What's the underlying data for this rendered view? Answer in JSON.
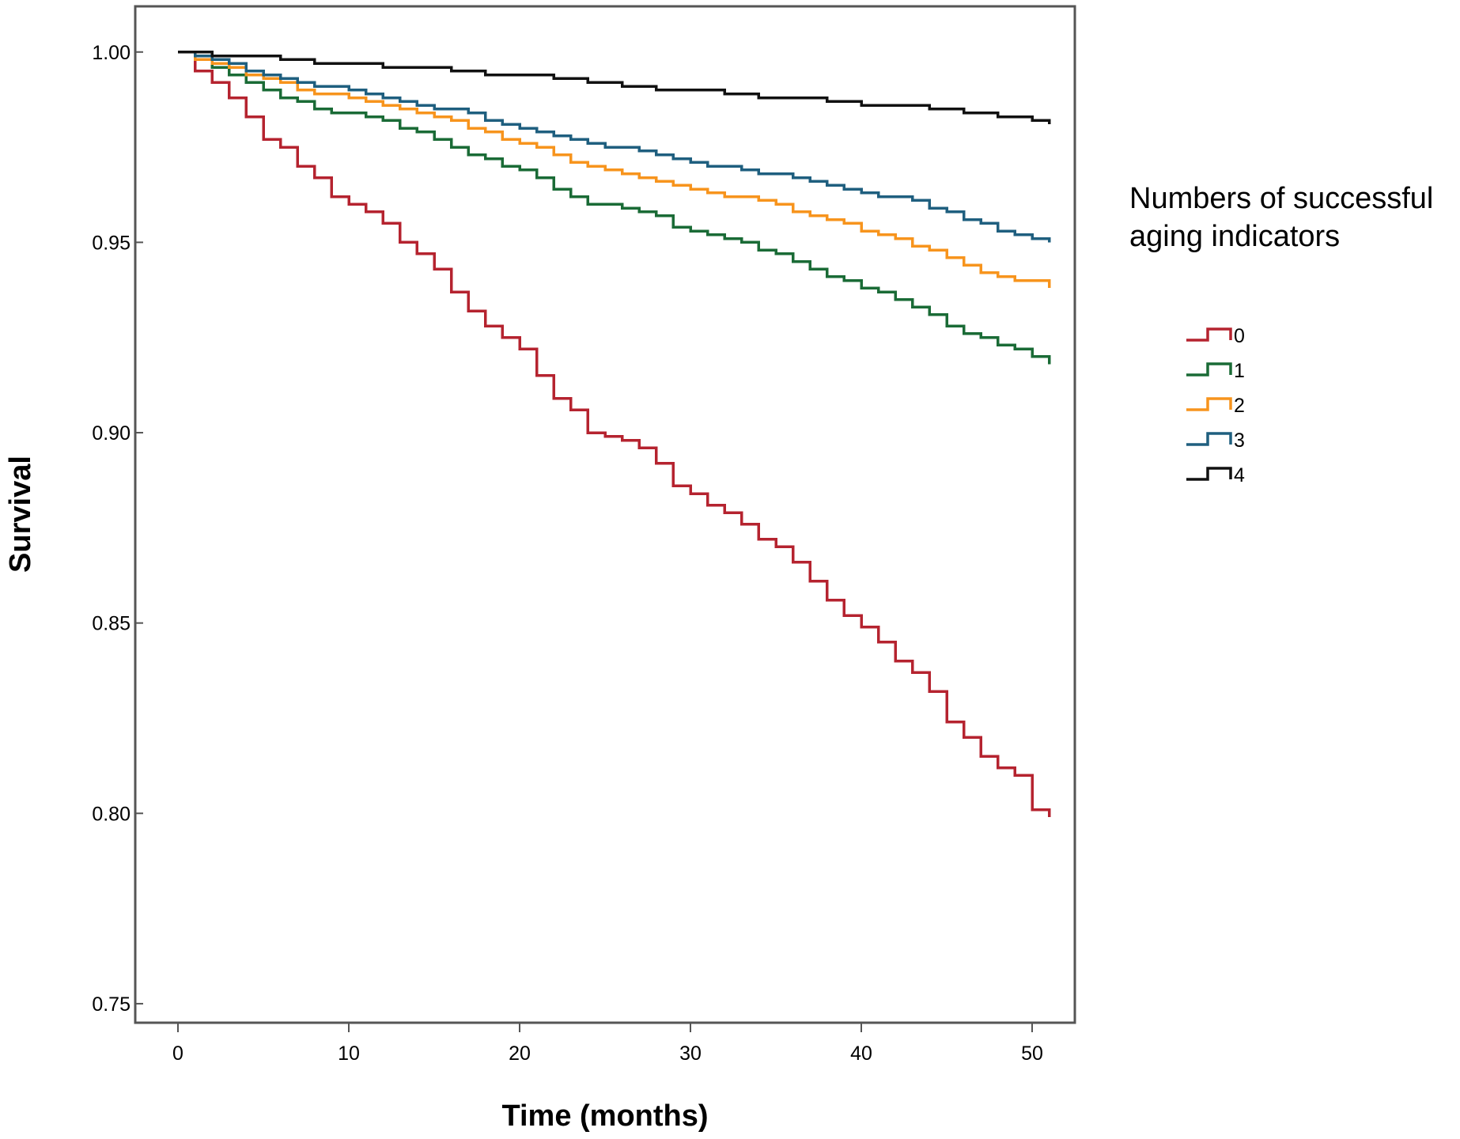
{
  "chart_data": {
    "type": "line",
    "step": true,
    "xlabel": "Time (months)",
    "ylabel": "Survival",
    "xlim": [
      -2.5,
      52.5
    ],
    "ylim": [
      0.745,
      1.012
    ],
    "xticks": [
      0,
      10,
      20,
      30,
      40,
      50
    ],
    "yticks": [
      0.75,
      0.8,
      0.85,
      0.9,
      0.95,
      1.0
    ],
    "xtick_labels": [
      "0",
      "10",
      "20",
      "30",
      "40",
      "50"
    ],
    "ytick_labels": [
      "0.75",
      "0.80",
      "0.85",
      "0.90",
      "0.95",
      "1.00"
    ],
    "grid": false,
    "legend": {
      "title_lines": [
        "Numbers of successful",
        "aging indicators"
      ],
      "placement": "right-outside"
    },
    "series": [
      {
        "name": "0",
        "color": "#b5232f",
        "points": [
          [
            0,
            1.0
          ],
          [
            1,
            0.995
          ],
          [
            2,
            0.992
          ],
          [
            3,
            0.988
          ],
          [
            4,
            0.983
          ],
          [
            5,
            0.977
          ],
          [
            6,
            0.975
          ],
          [
            7,
            0.97
          ],
          [
            8,
            0.967
          ],
          [
            9,
            0.962
          ],
          [
            10,
            0.96
          ],
          [
            11,
            0.958
          ],
          [
            12,
            0.955
          ],
          [
            13,
            0.95
          ],
          [
            14,
            0.947
          ],
          [
            15,
            0.943
          ],
          [
            16,
            0.937
          ],
          [
            17,
            0.932
          ],
          [
            18,
            0.928
          ],
          [
            19,
            0.925
          ],
          [
            20,
            0.922
          ],
          [
            21,
            0.915
          ],
          [
            22,
            0.909
          ],
          [
            23,
            0.906
          ],
          [
            24,
            0.9
          ],
          [
            25,
            0.899
          ],
          [
            26,
            0.898
          ],
          [
            27,
            0.896
          ],
          [
            28,
            0.892
          ],
          [
            29,
            0.886
          ],
          [
            30,
            0.884
          ],
          [
            31,
            0.881
          ],
          [
            32,
            0.879
          ],
          [
            33,
            0.876
          ],
          [
            34,
            0.872
          ],
          [
            35,
            0.87
          ],
          [
            36,
            0.866
          ],
          [
            37,
            0.861
          ],
          [
            38,
            0.856
          ],
          [
            39,
            0.852
          ],
          [
            40,
            0.849
          ],
          [
            41,
            0.845
          ],
          [
            42,
            0.84
          ],
          [
            43,
            0.837
          ],
          [
            44,
            0.832
          ],
          [
            45,
            0.824
          ],
          [
            46,
            0.82
          ],
          [
            47,
            0.815
          ],
          [
            48,
            0.812
          ],
          [
            49,
            0.81
          ],
          [
            50,
            0.801
          ],
          [
            51,
            0.799
          ]
        ]
      },
      {
        "name": "1",
        "color": "#1a6b36",
        "points": [
          [
            0,
            1.0
          ],
          [
            1,
            0.998
          ],
          [
            2,
            0.996
          ],
          [
            3,
            0.994
          ],
          [
            4,
            0.992
          ],
          [
            5,
            0.99
          ],
          [
            6,
            0.988
          ],
          [
            7,
            0.987
          ],
          [
            8,
            0.985
          ],
          [
            9,
            0.984
          ],
          [
            10,
            0.984
          ],
          [
            11,
            0.983
          ],
          [
            12,
            0.982
          ],
          [
            13,
            0.98
          ],
          [
            14,
            0.979
          ],
          [
            15,
            0.977
          ],
          [
            16,
            0.975
          ],
          [
            17,
            0.973
          ],
          [
            18,
            0.972
          ],
          [
            19,
            0.97
          ],
          [
            20,
            0.969
          ],
          [
            21,
            0.967
          ],
          [
            22,
            0.964
          ],
          [
            23,
            0.962
          ],
          [
            24,
            0.96
          ],
          [
            25,
            0.96
          ],
          [
            26,
            0.959
          ],
          [
            27,
            0.958
          ],
          [
            28,
            0.957
          ],
          [
            29,
            0.954
          ],
          [
            30,
            0.953
          ],
          [
            31,
            0.952
          ],
          [
            32,
            0.951
          ],
          [
            33,
            0.95
          ],
          [
            34,
            0.948
          ],
          [
            35,
            0.947
          ],
          [
            36,
            0.945
          ],
          [
            37,
            0.943
          ],
          [
            38,
            0.941
          ],
          [
            39,
            0.94
          ],
          [
            40,
            0.938
          ],
          [
            41,
            0.937
          ],
          [
            42,
            0.935
          ],
          [
            43,
            0.933
          ],
          [
            44,
            0.931
          ],
          [
            45,
            0.928
          ],
          [
            46,
            0.926
          ],
          [
            47,
            0.925
          ],
          [
            48,
            0.923
          ],
          [
            49,
            0.922
          ],
          [
            50,
            0.92
          ],
          [
            51,
            0.918
          ]
        ]
      },
      {
        "name": "2",
        "color": "#f7941d",
        "points": [
          [
            0,
            1.0
          ],
          [
            1,
            0.998
          ],
          [
            2,
            0.997
          ],
          [
            3,
            0.996
          ],
          [
            4,
            0.994
          ],
          [
            5,
            0.993
          ],
          [
            6,
            0.992
          ],
          [
            7,
            0.99
          ],
          [
            8,
            0.989
          ],
          [
            9,
            0.989
          ],
          [
            10,
            0.988
          ],
          [
            11,
            0.987
          ],
          [
            12,
            0.986
          ],
          [
            13,
            0.985
          ],
          [
            14,
            0.984
          ],
          [
            15,
            0.983
          ],
          [
            16,
            0.982
          ],
          [
            17,
            0.98
          ],
          [
            18,
            0.979
          ],
          [
            19,
            0.977
          ],
          [
            20,
            0.976
          ],
          [
            21,
            0.975
          ],
          [
            22,
            0.973
          ],
          [
            23,
            0.971
          ],
          [
            24,
            0.97
          ],
          [
            25,
            0.969
          ],
          [
            26,
            0.968
          ],
          [
            27,
            0.967
          ],
          [
            28,
            0.966
          ],
          [
            29,
            0.965
          ],
          [
            30,
            0.964
          ],
          [
            31,
            0.963
          ],
          [
            32,
            0.962
          ],
          [
            33,
            0.962
          ],
          [
            34,
            0.961
          ],
          [
            35,
            0.96
          ],
          [
            36,
            0.958
          ],
          [
            37,
            0.957
          ],
          [
            38,
            0.956
          ],
          [
            39,
            0.955
          ],
          [
            40,
            0.953
          ],
          [
            41,
            0.952
          ],
          [
            42,
            0.951
          ],
          [
            43,
            0.949
          ],
          [
            44,
            0.948
          ],
          [
            45,
            0.946
          ],
          [
            46,
            0.944
          ],
          [
            47,
            0.942
          ],
          [
            48,
            0.941
          ],
          [
            49,
            0.94
          ],
          [
            50,
            0.94
          ],
          [
            51,
            0.938
          ]
        ]
      },
      {
        "name": "3",
        "color": "#1f5f7f",
        "points": [
          [
            0,
            1.0
          ],
          [
            1,
            0.999
          ],
          [
            2,
            0.998
          ],
          [
            3,
            0.997
          ],
          [
            4,
            0.995
          ],
          [
            5,
            0.994
          ],
          [
            6,
            0.993
          ],
          [
            7,
            0.992
          ],
          [
            8,
            0.991
          ],
          [
            9,
            0.991
          ],
          [
            10,
            0.99
          ],
          [
            11,
            0.989
          ],
          [
            12,
            0.988
          ],
          [
            13,
            0.987
          ],
          [
            14,
            0.986
          ],
          [
            15,
            0.985
          ],
          [
            16,
            0.985
          ],
          [
            17,
            0.984
          ],
          [
            18,
            0.982
          ],
          [
            19,
            0.981
          ],
          [
            20,
            0.98
          ],
          [
            21,
            0.979
          ],
          [
            22,
            0.978
          ],
          [
            23,
            0.977
          ],
          [
            24,
            0.976
          ],
          [
            25,
            0.975
          ],
          [
            26,
            0.975
          ],
          [
            27,
            0.974
          ],
          [
            28,
            0.973
          ],
          [
            29,
            0.972
          ],
          [
            30,
            0.971
          ],
          [
            31,
            0.97
          ],
          [
            32,
            0.97
          ],
          [
            33,
            0.969
          ],
          [
            34,
            0.968
          ],
          [
            35,
            0.968
          ],
          [
            36,
            0.967
          ],
          [
            37,
            0.966
          ],
          [
            38,
            0.965
          ],
          [
            39,
            0.964
          ],
          [
            40,
            0.963
          ],
          [
            41,
            0.962
          ],
          [
            42,
            0.962
          ],
          [
            43,
            0.961
          ],
          [
            44,
            0.959
          ],
          [
            45,
            0.958
          ],
          [
            46,
            0.956
          ],
          [
            47,
            0.955
          ],
          [
            48,
            0.953
          ],
          [
            49,
            0.952
          ],
          [
            50,
            0.951
          ],
          [
            51,
            0.95
          ]
        ]
      },
      {
        "name": "4",
        "color": "#111111",
        "points": [
          [
            0,
            1.0
          ],
          [
            2,
            0.999
          ],
          [
            4,
            0.999
          ],
          [
            6,
            0.998
          ],
          [
            8,
            0.997
          ],
          [
            10,
            0.997
          ],
          [
            12,
            0.996
          ],
          [
            14,
            0.996
          ],
          [
            16,
            0.995
          ],
          [
            18,
            0.994
          ],
          [
            20,
            0.994
          ],
          [
            22,
            0.993
          ],
          [
            24,
            0.992
          ],
          [
            26,
            0.991
          ],
          [
            28,
            0.99
          ],
          [
            30,
            0.99
          ],
          [
            32,
            0.989
          ],
          [
            34,
            0.988
          ],
          [
            36,
            0.988
          ],
          [
            38,
            0.987
          ],
          [
            40,
            0.986
          ],
          [
            42,
            0.986
          ],
          [
            44,
            0.985
          ],
          [
            46,
            0.984
          ],
          [
            48,
            0.983
          ],
          [
            50,
            0.982
          ],
          [
            51,
            0.981
          ]
        ]
      }
    ]
  }
}
